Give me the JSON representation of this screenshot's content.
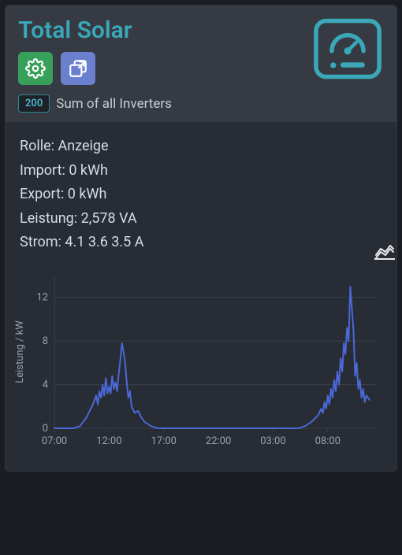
{
  "title": "Total Solar",
  "badge": {
    "value": "200",
    "label": "Sum of all Inverters"
  },
  "stats": {
    "rolle_label": "Rolle:",
    "rolle_value": "Anzeige",
    "import_label": "Import:",
    "import_value": "0 kWh",
    "export_label": "Export:",
    "export_value": "0 kWh",
    "leistung_label": "Leistung:",
    "leistung_value": "2,578 VA",
    "strom_label": "Strom:",
    "strom_value": "4.1 3.6 3.5 A"
  },
  "colors": {
    "accent": "#3aa8b8",
    "btn_green": "#37a05a",
    "btn_blue": "#6a7fce",
    "line": "#4a68d8",
    "axis_text": "#9aa0aa",
    "grid": "#3a3f48",
    "body_text": "#d8dce4",
    "card_bg": "#282c34",
    "header_bg": "rgba(80,85,95,0.35)"
  },
  "chart": {
    "type": "line",
    "ylabel": "Leistung / kW",
    "ylim": [
      0,
      14
    ],
    "yticks": [
      0,
      4,
      8,
      12
    ],
    "xticks": [
      "07:00",
      "12:00",
      "17:00",
      "22:00",
      "03:00",
      "08:00"
    ],
    "xtick_positions": [
      0,
      0.17,
      0.34,
      0.51,
      0.68,
      0.85
    ],
    "line_color": "#4a68d8",
    "line_width": 2,
    "axis_fontsize": 13,
    "ylabel_fontsize": 13,
    "grid_color": "#3a3f48",
    "background_color": "#282c34",
    "data": [
      [
        0.0,
        0.0
      ],
      [
        0.02,
        0.0
      ],
      [
        0.04,
        0.0
      ],
      [
        0.06,
        0.0
      ],
      [
        0.08,
        0.2
      ],
      [
        0.09,
        0.6
      ],
      [
        0.1,
        1.0
      ],
      [
        0.11,
        1.6
      ],
      [
        0.12,
        2.2
      ],
      [
        0.13,
        3.0
      ],
      [
        0.135,
        2.2
      ],
      [
        0.14,
        3.4
      ],
      [
        0.145,
        2.8
      ],
      [
        0.15,
        4.0
      ],
      [
        0.155,
        3.0
      ],
      [
        0.16,
        4.6
      ],
      [
        0.165,
        3.2
      ],
      [
        0.17,
        3.8
      ],
      [
        0.175,
        3.2
      ],
      [
        0.18,
        4.8
      ],
      [
        0.185,
        3.6
      ],
      [
        0.19,
        4.2
      ],
      [
        0.195,
        3.4
      ],
      [
        0.2,
        5.0
      ],
      [
        0.205,
        6.2
      ],
      [
        0.21,
        7.8
      ],
      [
        0.215,
        7.0
      ],
      [
        0.22,
        6.0
      ],
      [
        0.225,
        4.2
      ],
      [
        0.23,
        2.8
      ],
      [
        0.235,
        3.4
      ],
      [
        0.24,
        2.0
      ],
      [
        0.25,
        1.4
      ],
      [
        0.26,
        1.6
      ],
      [
        0.27,
        1.0
      ],
      [
        0.28,
        0.6
      ],
      [
        0.3,
        0.2
      ],
      [
        0.32,
        0.0
      ],
      [
        0.4,
        0.0
      ],
      [
        0.5,
        0.0
      ],
      [
        0.6,
        0.0
      ],
      [
        0.7,
        0.0
      ],
      [
        0.76,
        0.0
      ],
      [
        0.78,
        0.2
      ],
      [
        0.8,
        0.6
      ],
      [
        0.82,
        1.2
      ],
      [
        0.83,
        1.8
      ],
      [
        0.835,
        1.4
      ],
      [
        0.84,
        2.4
      ],
      [
        0.845,
        1.8
      ],
      [
        0.85,
        3.0
      ],
      [
        0.855,
        2.2
      ],
      [
        0.86,
        3.6
      ],
      [
        0.865,
        2.8
      ],
      [
        0.87,
        4.4
      ],
      [
        0.875,
        3.4
      ],
      [
        0.88,
        5.2
      ],
      [
        0.885,
        4.0
      ],
      [
        0.89,
        6.4
      ],
      [
        0.895,
        5.2
      ],
      [
        0.9,
        7.8
      ],
      [
        0.905,
        6.8
      ],
      [
        0.91,
        9.2
      ],
      [
        0.915,
        8.0
      ],
      [
        0.92,
        13.0
      ],
      [
        0.925,
        11.0
      ],
      [
        0.93,
        9.0
      ],
      [
        0.935,
        4.8
      ],
      [
        0.94,
        6.0
      ],
      [
        0.945,
        3.6
      ],
      [
        0.95,
        4.4
      ],
      [
        0.955,
        2.8
      ],
      [
        0.96,
        3.6
      ],
      [
        0.965,
        2.4
      ],
      [
        0.97,
        3.0
      ],
      [
        0.98,
        2.6
      ]
    ]
  }
}
